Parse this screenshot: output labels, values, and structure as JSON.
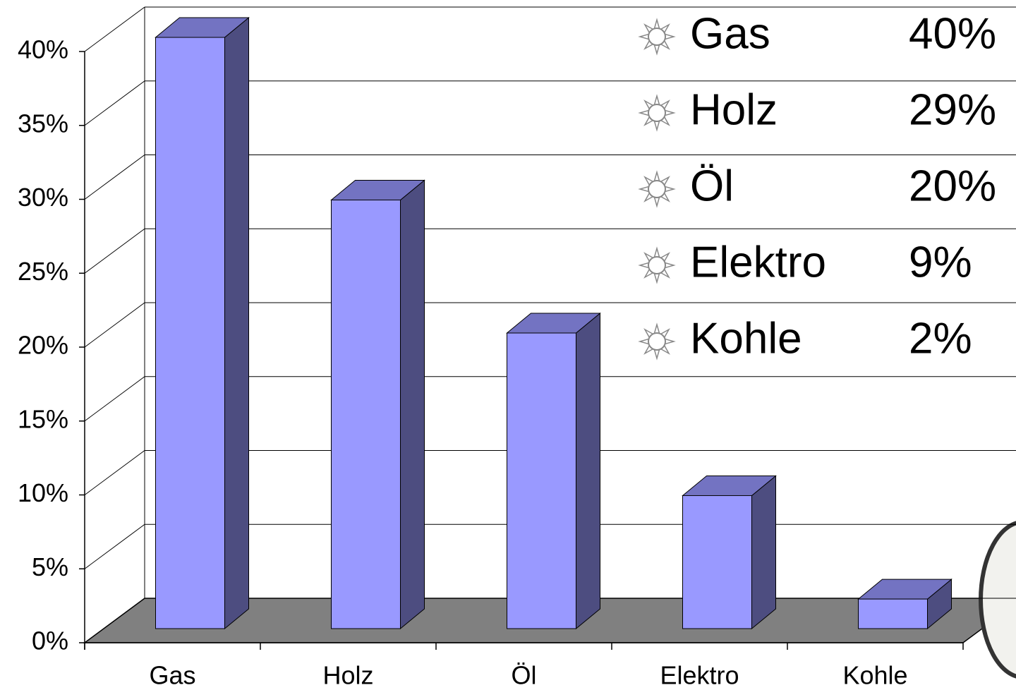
{
  "chart_data": {
    "type": "bar",
    "categories": [
      "Gas",
      "Holz",
      "Öl",
      "Elektro",
      "Kohle"
    ],
    "values": [
      40,
      29,
      20,
      9,
      2
    ],
    "value_labels": [
      "40%",
      "29%",
      "20%",
      "9%",
      "2%"
    ],
    "color": "#9999ff",
    "ylim": [
      0,
      40
    ],
    "yticks": [
      {
        "value": 0,
        "label": "0%"
      },
      {
        "value": 5,
        "label": "5%"
      },
      {
        "value": 10,
        "label": "10%"
      },
      {
        "value": 15,
        "label": "15%"
      },
      {
        "value": 20,
        "label": "20%"
      },
      {
        "value": 25,
        "label": "25%"
      },
      {
        "value": 30,
        "label": "30%"
      },
      {
        "value": 35,
        "label": "35%"
      },
      {
        "value": 40,
        "label": "40%"
      }
    ],
    "grid": true
  }
}
